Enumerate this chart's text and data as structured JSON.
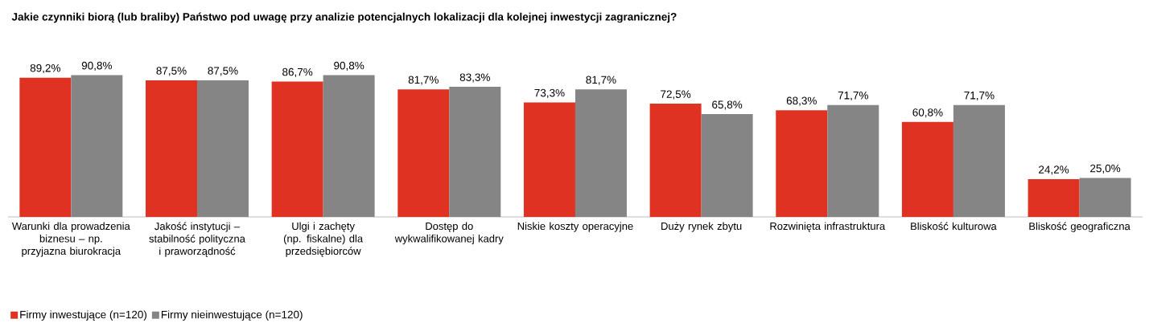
{
  "chart_data": {
    "type": "bar",
    "title": "Jakie czynniki biorą (lub braliby) Państwo pod uwagę przy analizie potencjalnych lokalizacji dla kolejnej inwestycji zagranicznej?",
    "categories": [
      "Warunki dla prowadzenia biznesu – np. przyjazna biurokracja",
      "Jakość instytucji – stabilność polityczna i praworządność",
      "Ulgi i zachęty (np. fiskalne) dla przedsiębiorców",
      "Dostęp do wykwalifikowanej kadry",
      "Niskie koszty operacyjne",
      "Duży rynek zbytu",
      "Rozwinięta infrastruktura",
      "Bliskość kulturowa",
      "Bliskość geograficzna"
    ],
    "series": [
      {
        "name": "Firmy inwestujące (n=120)",
        "color": "#e03222",
        "values": [
          89.2,
          87.5,
          86.7,
          81.7,
          73.3,
          72.5,
          68.3,
          60.8,
          24.2
        ],
        "value_labels": [
          "89,2%",
          "87,5%",
          "86,7%",
          "81,7%",
          "73,3%",
          "72,5%",
          "68,3%",
          "60,8%",
          "24,2%"
        ]
      },
      {
        "name": "Firmy nieinwestujące (n=120)",
        "color": "#858585",
        "values": [
          90.8,
          87.5,
          90.8,
          83.3,
          81.7,
          65.8,
          71.7,
          71.7,
          25.0
        ],
        "value_labels": [
          "90,8%",
          "87,5%",
          "90,8%",
          "83,3%",
          "81,7%",
          "65,8%",
          "71,7%",
          "71,7%",
          "25,0%"
        ]
      }
    ],
    "legend": "bottom left"
  }
}
